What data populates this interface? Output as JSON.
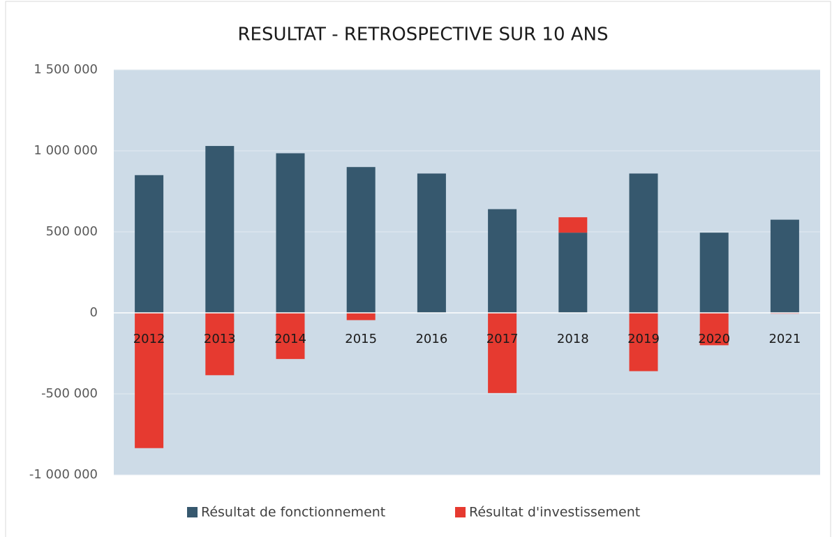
{
  "chart_data": {
    "type": "stacked_bar",
    "title": "RESULTAT - RETROSPECTIVE SUR 10 ANS",
    "categories": [
      "2012",
      "2013",
      "2014",
      "2015",
      "2016",
      "2017",
      "2018",
      "2019",
      "2020",
      "2021"
    ],
    "series": [
      {
        "name": "Résultat de fonctionnement",
        "color": "#36586e",
        "values": [
          850000,
          1030000,
          985000,
          900000,
          860000,
          640000,
          495000,
          860000,
          495000,
          575000
        ]
      },
      {
        "name": "Résultat d'investissement",
        "color": "#e63a30",
        "values": [
          -835000,
          -385000,
          -285000,
          -45000,
          0,
          -495000,
          95000,
          -360000,
          -200000,
          -5000
        ]
      }
    ],
    "ylim": [
      -1000000,
      1500000
    ],
    "yticks": [
      {
        "value": -1000000,
        "label": "-1 000 000"
      },
      {
        "value": -500000,
        "label": "-500 000"
      },
      0,
      {
        "value": 500000,
        "label": "500 000"
      },
      {
        "value": 1000000,
        "label": "1 000 000"
      },
      {
        "value": 1500000,
        "label": "1 500 000"
      }
    ],
    "grid": true,
    "legend": "bottom"
  }
}
